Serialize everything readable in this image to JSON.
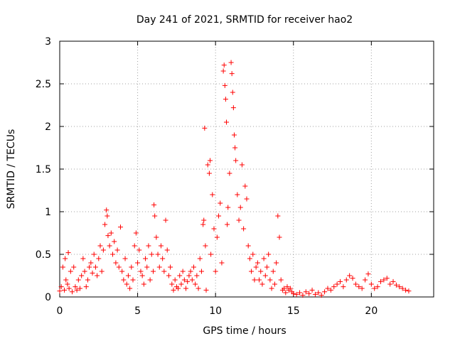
{
  "chart_data": {
    "type": "scatter",
    "title": "Day 241 of 2021, SRMTID for receiver hao2",
    "xlabel": "GPS time / hours",
    "ylabel": "SRMTID / TECUs",
    "xlim": [
      0,
      24
    ],
    "ylim": [
      0,
      3
    ],
    "xticks": [
      0,
      5,
      10,
      15,
      20
    ],
    "xtick_labels": [
      "0",
      "5",
      "10",
      "15",
      "20"
    ],
    "yticks": [
      0,
      0.5,
      1,
      1.5,
      2,
      2.5,
      3
    ],
    "ytick_labels": [
      "0",
      "0.5",
      "1",
      "1.5",
      "2",
      "2.5",
      "3"
    ],
    "grid": true,
    "marker": "plus",
    "color": "#ff0000",
    "series": [
      {
        "name": "SRMTID",
        "points": [
          [
            0.0,
            0.07
          ],
          [
            0.1,
            0.12
          ],
          [
            0.2,
            0.35
          ],
          [
            0.3,
            0.08
          ],
          [
            0.35,
            0.45
          ],
          [
            0.4,
            0.2
          ],
          [
            0.5,
            0.15
          ],
          [
            0.55,
            0.52
          ],
          [
            0.6,
            0.1
          ],
          [
            0.7,
            0.3
          ],
          [
            0.8,
            0.06
          ],
          [
            0.9,
            0.35
          ],
          [
            1.0,
            0.12
          ],
          [
            1.1,
            0.08
          ],
          [
            1.2,
            0.2
          ],
          [
            1.3,
            0.1
          ],
          [
            1.4,
            0.25
          ],
          [
            1.5,
            0.45
          ],
          [
            1.6,
            0.3
          ],
          [
            1.7,
            0.12
          ],
          [
            1.8,
            0.2
          ],
          [
            1.9,
            0.35
          ],
          [
            2.0,
            0.4
          ],
          [
            2.1,
            0.28
          ],
          [
            2.2,
            0.5
          ],
          [
            2.3,
            0.35
          ],
          [
            2.4,
            0.25
          ],
          [
            2.5,
            0.45
          ],
          [
            2.6,
            0.6
          ],
          [
            2.7,
            0.3
          ],
          [
            2.8,
            0.55
          ],
          [
            2.9,
            0.85
          ],
          [
            3.0,
            1.02
          ],
          [
            3.05,
            0.95
          ],
          [
            3.1,
            0.72
          ],
          [
            3.2,
            0.6
          ],
          [
            3.3,
            0.75
          ],
          [
            3.4,
            0.5
          ],
          [
            3.5,
            0.65
          ],
          [
            3.6,
            0.4
          ],
          [
            3.7,
            0.55
          ],
          [
            3.8,
            0.35
          ],
          [
            3.9,
            0.82
          ],
          [
            4.0,
            0.3
          ],
          [
            4.1,
            0.2
          ],
          [
            4.2,
            0.45
          ],
          [
            4.3,
            0.15
          ],
          [
            4.4,
            0.25
          ],
          [
            4.5,
            0.1
          ],
          [
            4.6,
            0.35
          ],
          [
            4.7,
            0.2
          ],
          [
            4.8,
            0.6
          ],
          [
            4.9,
            0.75
          ],
          [
            5.0,
            0.4
          ],
          [
            5.1,
            0.55
          ],
          [
            5.2,
            0.3
          ],
          [
            5.3,
            0.25
          ],
          [
            5.4,
            0.15
          ],
          [
            5.5,
            0.45
          ],
          [
            5.6,
            0.35
          ],
          [
            5.7,
            0.6
          ],
          [
            5.8,
            0.2
          ],
          [
            5.9,
            0.5
          ],
          [
            6.0,
            0.3
          ],
          [
            6.05,
            1.08
          ],
          [
            6.1,
            0.95
          ],
          [
            6.2,
            0.7
          ],
          [
            6.3,
            0.5
          ],
          [
            6.4,
            0.35
          ],
          [
            6.5,
            0.6
          ],
          [
            6.6,
            0.45
          ],
          [
            6.7,
            0.3
          ],
          [
            6.8,
            0.9
          ],
          [
            6.9,
            0.55
          ],
          [
            7.0,
            0.25
          ],
          [
            7.1,
            0.35
          ],
          [
            7.2,
            0.15
          ],
          [
            7.3,
            0.08
          ],
          [
            7.4,
            0.2
          ],
          [
            7.5,
            0.12
          ],
          [
            7.6,
            0.1
          ],
          [
            7.7,
            0.25
          ],
          [
            7.8,
            0.15
          ],
          [
            7.9,
            0.3
          ],
          [
            8.0,
            0.2
          ],
          [
            8.1,
            0.1
          ],
          [
            8.2,
            0.18
          ],
          [
            8.3,
            0.25
          ],
          [
            8.4,
            0.3
          ],
          [
            8.5,
            0.2
          ],
          [
            8.6,
            0.35
          ],
          [
            8.7,
            0.15
          ],
          [
            8.8,
            0.25
          ],
          [
            8.9,
            0.1
          ],
          [
            9.0,
            0.45
          ],
          [
            9.1,
            0.3
          ],
          [
            9.2,
            0.85
          ],
          [
            9.25,
            0.9
          ],
          [
            9.3,
            1.98
          ],
          [
            9.35,
            0.6
          ],
          [
            9.4,
            0.08
          ],
          [
            9.5,
            1.55
          ],
          [
            9.6,
            1.45
          ],
          [
            9.65,
            1.6
          ],
          [
            9.7,
            0.5
          ],
          [
            9.8,
            1.2
          ],
          [
            9.9,
            0.8
          ],
          [
            10.0,
            0.3
          ],
          [
            10.1,
            0.7
          ],
          [
            10.2,
            0.95
          ],
          [
            10.3,
            1.1
          ],
          [
            10.4,
            0.4
          ],
          [
            10.5,
            2.65
          ],
          [
            10.55,
            2.72
          ],
          [
            10.6,
            2.48
          ],
          [
            10.65,
            2.32
          ],
          [
            10.7,
            2.05
          ],
          [
            10.75,
            0.85
          ],
          [
            10.8,
            1.05
          ],
          [
            10.9,
            1.45
          ],
          [
            11.0,
            2.75
          ],
          [
            11.05,
            2.62
          ],
          [
            11.1,
            2.4
          ],
          [
            11.15,
            2.22
          ],
          [
            11.2,
            1.9
          ],
          [
            11.25,
            1.75
          ],
          [
            11.3,
            1.6
          ],
          [
            11.4,
            1.2
          ],
          [
            11.5,
            0.9
          ],
          [
            11.6,
            1.05
          ],
          [
            11.7,
            1.55
          ],
          [
            11.8,
            0.8
          ],
          [
            11.9,
            1.3
          ],
          [
            12.0,
            1.15
          ],
          [
            12.1,
            0.6
          ],
          [
            12.2,
            0.45
          ],
          [
            12.3,
            0.3
          ],
          [
            12.4,
            0.5
          ],
          [
            12.5,
            0.2
          ],
          [
            12.6,
            0.35
          ],
          [
            12.7,
            0.4
          ],
          [
            12.8,
            0.2
          ],
          [
            12.9,
            0.3
          ],
          [
            13.0,
            0.15
          ],
          [
            13.1,
            0.45
          ],
          [
            13.2,
            0.25
          ],
          [
            13.3,
            0.35
          ],
          [
            13.4,
            0.5
          ],
          [
            13.5,
            0.2
          ],
          [
            13.6,
            0.1
          ],
          [
            13.7,
            0.3
          ],
          [
            13.8,
            0.15
          ],
          [
            13.9,
            0.4
          ],
          [
            14.0,
            0.95
          ],
          [
            14.1,
            0.7
          ],
          [
            14.2,
            0.2
          ],
          [
            14.3,
            0.08
          ],
          [
            14.4,
            0.1
          ],
          [
            14.5,
            0.05
          ],
          [
            14.6,
            0.12
          ],
          [
            14.7,
            0.08
          ],
          [
            14.8,
            0.1
          ],
          [
            14.9,
            0.06
          ],
          [
            15.0,
            0.04
          ],
          [
            15.2,
            0.03
          ],
          [
            15.4,
            0.05
          ],
          [
            15.6,
            0.02
          ],
          [
            15.8,
            0.06
          ],
          [
            16.0,
            0.04
          ],
          [
            16.2,
            0.08
          ],
          [
            16.4,
            0.03
          ],
          [
            16.6,
            0.05
          ],
          [
            16.8,
            0.02
          ],
          [
            17.0,
            0.06
          ],
          [
            17.2,
            0.1
          ],
          [
            17.4,
            0.08
          ],
          [
            17.6,
            0.12
          ],
          [
            17.8,
            0.15
          ],
          [
            18.0,
            0.18
          ],
          [
            18.2,
            0.12
          ],
          [
            18.4,
            0.2
          ],
          [
            18.6,
            0.25
          ],
          [
            18.8,
            0.22
          ],
          [
            19.0,
            0.15
          ],
          [
            19.2,
            0.12
          ],
          [
            19.4,
            0.1
          ],
          [
            19.6,
            0.2
          ],
          [
            19.8,
            0.27
          ],
          [
            20.0,
            0.15
          ],
          [
            20.2,
            0.1
          ],
          [
            20.4,
            0.12
          ],
          [
            20.6,
            0.18
          ],
          [
            20.8,
            0.2
          ],
          [
            21.0,
            0.22
          ],
          [
            21.2,
            0.15
          ],
          [
            21.4,
            0.18
          ],
          [
            21.6,
            0.14
          ],
          [
            21.8,
            0.12
          ],
          [
            22.0,
            0.1
          ],
          [
            22.2,
            0.08
          ],
          [
            22.4,
            0.07
          ]
        ]
      }
    ]
  }
}
